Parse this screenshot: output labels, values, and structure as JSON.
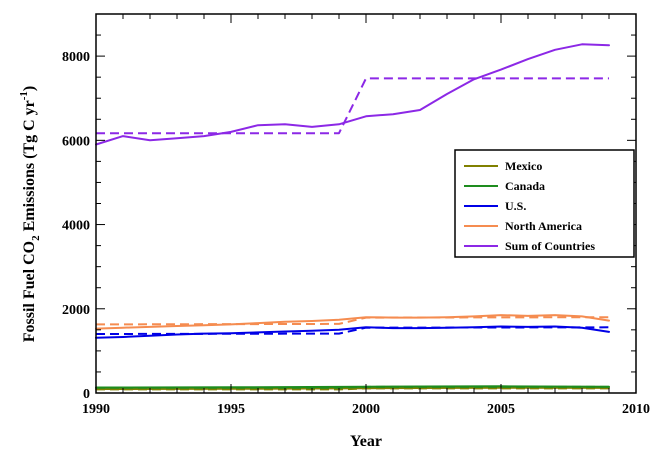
{
  "chart_data": {
    "type": "line",
    "xlabel": "Year",
    "ylabel": {
      "main": "Fossil Fuel CO",
      "sub": "2",
      "rest": " Emissions (Tg C yr",
      "sup": "-1",
      "close": ")"
    },
    "xlim": [
      1990,
      2010
    ],
    "ylim": [
      0,
      9000
    ],
    "x_ticks": [
      1990,
      1995,
      2000,
      2005,
      2010
    ],
    "y_ticks": [
      0,
      2000,
      4000,
      6000,
      8000
    ],
    "x_minor_step": 1,
    "y_minor_step": 500,
    "grid": false,
    "legend_position": "right",
    "series": [
      {
        "name": "Mexico",
        "color": "#808000",
        "solid": {
          "x": [
            1990,
            1995,
            2000,
            2005,
            2009
          ],
          "y": [
            95,
            100,
            115,
            125,
            120
          ]
        },
        "dashed": {
          "x": [
            1990,
            1999,
            2000,
            2009
          ],
          "y": [
            85,
            85,
            110,
            110
          ]
        }
      },
      {
        "name": "Canada",
        "color": "#1e8c1e",
        "solid": {
          "x": [
            1990,
            1995,
            2000,
            2005,
            2009
          ],
          "y": [
            130,
            135,
            150,
            160,
            150
          ]
        },
        "dashed": {
          "x": [
            1990,
            1999,
            2000,
            2009
          ],
          "y": [
            125,
            125,
            145,
            145
          ]
        }
      },
      {
        "name": "U.S.",
        "color": "#0000e6",
        "solid": {
          "x": [
            1990,
            1991,
            1992,
            1993,
            1994,
            1995,
            1996,
            1997,
            1998,
            1999,
            2000,
            2001,
            2002,
            2003,
            2004,
            2005,
            2006,
            2007,
            2008,
            2009
          ],
          "y": [
            1310,
            1330,
            1360,
            1390,
            1410,
            1420,
            1440,
            1460,
            1480,
            1500,
            1560,
            1540,
            1540,
            1550,
            1560,
            1580,
            1570,
            1580,
            1550,
            1450
          ]
        },
        "dashed": {
          "x": [
            1990,
            1999,
            2000,
            2009
          ],
          "y": [
            1400,
            1410,
            1550,
            1560
          ]
        }
      },
      {
        "name": "North America",
        "color": "#f58c50",
        "solid": {
          "x": [
            1990,
            1991,
            1992,
            1993,
            1994,
            1995,
            1996,
            1997,
            1998,
            1999,
            2000,
            2001,
            2002,
            2003,
            2004,
            2005,
            2006,
            2007,
            2008,
            2009
          ],
          "y": [
            1530,
            1550,
            1570,
            1590,
            1610,
            1630,
            1660,
            1690,
            1710,
            1740,
            1800,
            1790,
            1790,
            1800,
            1820,
            1850,
            1830,
            1850,
            1820,
            1720
          ]
        },
        "dashed": {
          "x": [
            1990,
            1999,
            2000,
            2009
          ],
          "y": [
            1630,
            1640,
            1790,
            1800
          ]
        }
      },
      {
        "name": "Sum of Countries",
        "color": "#8c28e6",
        "solid": {
          "x": [
            1990,
            1991,
            1992,
            1993,
            1994,
            1995,
            1996,
            1997,
            1998,
            1999,
            2000,
            2001,
            2002,
            2003,
            2004,
            2005,
            2006,
            2007,
            2008,
            2009
          ],
          "y": [
            5900,
            6100,
            6000,
            6050,
            6100,
            6200,
            6360,
            6380,
            6320,
            6380,
            6570,
            6620,
            6720,
            7100,
            7450,
            7680,
            7930,
            8150,
            8280,
            8260
          ]
        },
        "dashed": {
          "x": [
            1990,
            1999,
            2000,
            2009
          ],
          "y": [
            6170,
            6170,
            7470,
            7470
          ]
        }
      }
    ]
  }
}
